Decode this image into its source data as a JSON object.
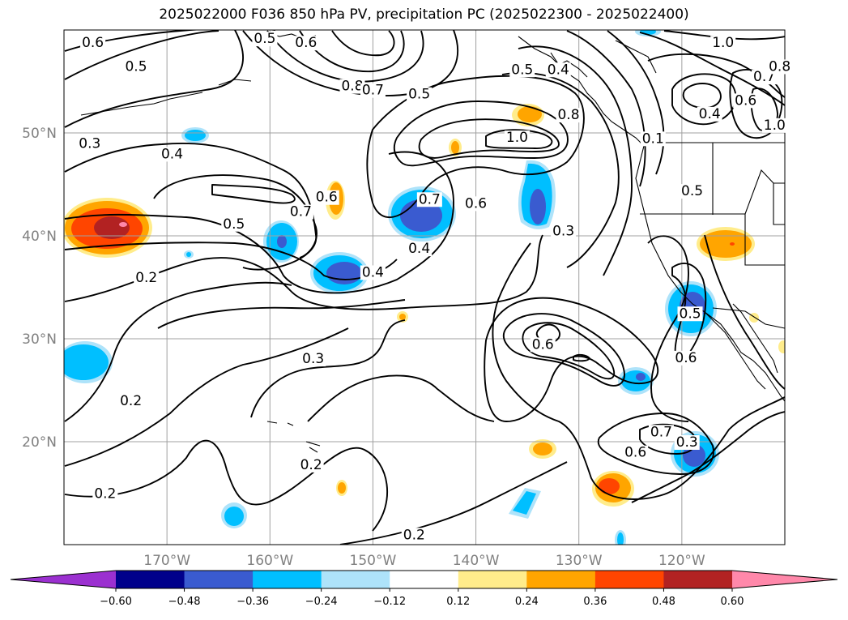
{
  "title": "2025022000 F036 850 hPa PV, precipitation PC (2025022300 - 2025022400)",
  "chart_data": {
    "type": "contour-map",
    "field_contours": "850 hPa PV",
    "field_filled": "precipitation PC",
    "lat_ticks": [
      {
        "label": "50°N",
        "value": 50
      },
      {
        "label": "40°N",
        "value": 40
      },
      {
        "label": "30°N",
        "value": 30
      },
      {
        "label": "20°N",
        "value": 20
      }
    ],
    "lon_ticks": [
      {
        "label": "170°W",
        "value": -170
      },
      {
        "label": "160°W",
        "value": -160
      },
      {
        "label": "150°W",
        "value": -150
      },
      {
        "label": "140°W",
        "value": -140
      },
      {
        "label": "130°W",
        "value": -130
      },
      {
        "label": "120°W",
        "value": -120
      }
    ],
    "lon_range": [
      -180,
      -110
    ],
    "lat_range": [
      10,
      60
    ],
    "grid": true,
    "contour_labels": [
      {
        "text": "0.6",
        "lon": -177.2,
        "lat": 58.8
      },
      {
        "text": "0.5",
        "lon": -173.0,
        "lat": 56.5
      },
      {
        "text": "0.5",
        "lon": -160.5,
        "lat": 59.2
      },
      {
        "text": "0.6",
        "lon": -156.5,
        "lat": 58.8
      },
      {
        "text": "0.8",
        "lon": -152.0,
        "lat": 54.6
      },
      {
        "text": "0.7",
        "lon": -150.0,
        "lat": 54.2
      },
      {
        "text": "0.5",
        "lon": -145.5,
        "lat": 53.8
      },
      {
        "text": "0.5",
        "lon": -135.5,
        "lat": 56.2
      },
      {
        "text": "0.4",
        "lon": -132.0,
        "lat": 56.2
      },
      {
        "text": "0.8",
        "lon": -131.0,
        "lat": 51.8
      },
      {
        "text": "1.0",
        "lon": -116.0,
        "lat": 58.8
      },
      {
        "text": "0.7",
        "lon": -112.0,
        "lat": 55.5
      },
      {
        "text": "0.6",
        "lon": -113.8,
        "lat": 53.2
      },
      {
        "text": "0.4",
        "lon": -117.3,
        "lat": 51.9
      },
      {
        "text": "1.0",
        "lon": -111.0,
        "lat": 50.8
      },
      {
        "text": "0.8",
        "lon": -110.5,
        "lat": 56.5
      },
      {
        "text": "0.3",
        "lon": -177.5,
        "lat": 49.0
      },
      {
        "text": "0.4",
        "lon": -169.5,
        "lat": 48.0
      },
      {
        "text": "1.0",
        "lon": -136.0,
        "lat": 49.6
      },
      {
        "text": "0.7",
        "lon": -157.0,
        "lat": 42.4
      },
      {
        "text": "0.6",
        "lon": -154.5,
        "lat": 43.8
      },
      {
        "text": "0.5",
        "lon": -163.5,
        "lat": 41.2
      },
      {
        "text": "0.7",
        "lon": -144.5,
        "lat": 43.6
      },
      {
        "text": "0.6",
        "lon": -140.0,
        "lat": 43.2
      },
      {
        "text": "0.4",
        "lon": -145.5,
        "lat": 38.8
      },
      {
        "text": "0.4",
        "lon": -150.0,
        "lat": 36.5
      },
      {
        "text": "0.3",
        "lon": -131.5,
        "lat": 40.5
      },
      {
        "text": "0.1",
        "lon": -122.8,
        "lat": 49.5
      },
      {
        "text": "0.5",
        "lon": -119.0,
        "lat": 44.4
      },
      {
        "text": "0.5",
        "lon": -119.2,
        "lat": 32.5
      },
      {
        "text": "0.6",
        "lon": -119.6,
        "lat": 28.2
      },
      {
        "text": "0.2",
        "lon": -172.0,
        "lat": 36.0
      },
      {
        "text": "0.6",
        "lon": -133.5,
        "lat": 29.5
      },
      {
        "text": "0.3",
        "lon": -155.8,
        "lat": 28.1
      },
      {
        "text": "0.2",
        "lon": -173.5,
        "lat": 24.0
      },
      {
        "text": "0.7",
        "lon": -122.0,
        "lat": 21.0
      },
      {
        "text": "0.3",
        "lon": -119.5,
        "lat": 20.0
      },
      {
        "text": "0.6",
        "lon": -124.5,
        "lat": 19.0
      },
      {
        "text": "0.2",
        "lon": -156.0,
        "lat": 17.8
      },
      {
        "text": "0.2",
        "lon": -176.0,
        "lat": 15.0
      },
      {
        "text": "0.2",
        "lon": -146.0,
        "lat": 11.0
      }
    ],
    "colorbar": {
      "levels": [
        -0.72,
        -0.6,
        -0.48,
        -0.36,
        -0.24,
        -0.12,
        0.12,
        0.24,
        0.36,
        0.48,
        0.6,
        0.72
      ],
      "tick_labels": [
        "−0.60",
        "−0.48",
        "−0.36",
        "−0.24",
        "−0.12",
        "0.12",
        "0.24",
        "0.36",
        "0.48",
        "0.60"
      ],
      "colors": [
        "#9b30d0",
        "#00008b",
        "#3a5bd0",
        "#00bfff",
        "#aee3fa",
        "#ffffff",
        "#ffec8b",
        "#ffa500",
        "#ff4500",
        "#b22222",
        "#ff88aa"
      ],
      "extend": "both"
    }
  }
}
